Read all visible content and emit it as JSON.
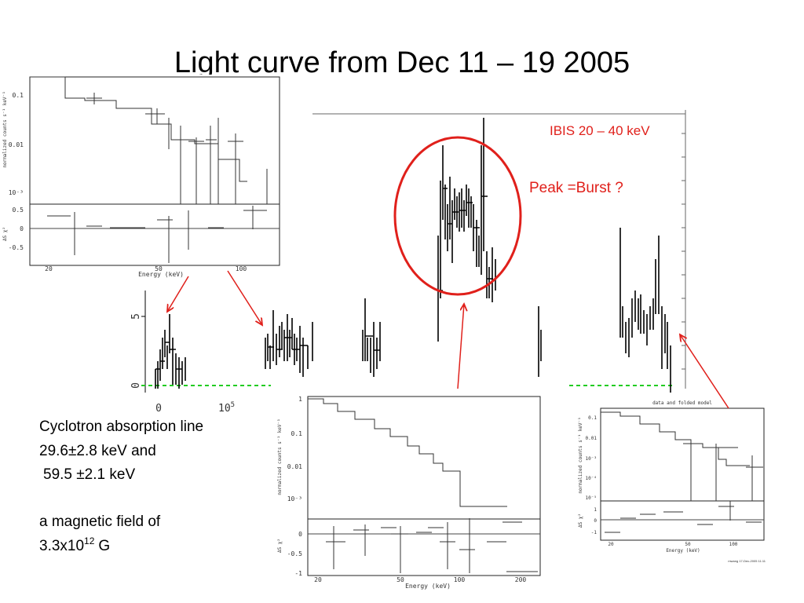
{
  "title": "Light curve from Dec 11 – 19 2005",
  "light_curve": {
    "label": "IBIS 20 – 40 keV",
    "annotation": "Peak =Burst ?",
    "y_ticks": [
      "0",
      "5"
    ],
    "x_tick_0": "0",
    "x_tick_1_base": "10",
    "x_tick_1_exp": "5"
  },
  "notes": {
    "line_1": "Cyclotron absorption line",
    "line_2": "29.6±2.8 keV and",
    "line_3": "59.5 ±2.1 keV",
    "line_4": "a magnetic field of",
    "line_5_base": "3.3x10",
    "line_5_exp": "12",
    "line_5_unit": "G"
  },
  "spectrum_top_left": {
    "y_label": "normalized counts s⁻¹ keV⁻¹",
    "y_ticks": [
      "0.1",
      "0.01",
      "10⁻³"
    ],
    "residual_label": "ΔS χ²",
    "residual_ticks": [
      "0.5",
      "0",
      "-0.5"
    ],
    "x_ticks": [
      "20",
      "50",
      "100"
    ],
    "x_label": "Energy (keV)"
  },
  "spectrum_bottom": {
    "y_label": "normalized counts s⁻¹ keV⁻¹",
    "y_ticks": [
      "1",
      "0.1",
      "0.01",
      "10⁻³"
    ],
    "residual_label": "ΔS χ²",
    "residual_ticks": [
      "0",
      "-0.5",
      "-1"
    ],
    "x_ticks": [
      "20",
      "50",
      "100",
      "200"
    ],
    "x_label": "Energy (keV)"
  },
  "spectrum_right": {
    "title": "data and folded model",
    "y_label": "normalized counts s⁻¹ keV⁻¹",
    "y_ticks": [
      "0.1",
      "0.01",
      "10⁻³",
      "10⁻⁴",
      "10⁻⁵"
    ],
    "residual_label": "ΔS χ²",
    "residual_ticks": [
      "1",
      "0",
      "-1"
    ],
    "x_ticks": [
      "20",
      "50",
      "100"
    ],
    "x_label": "Energy (keV)",
    "footer": "mwang 17-Dec-2005 11:11"
  }
}
